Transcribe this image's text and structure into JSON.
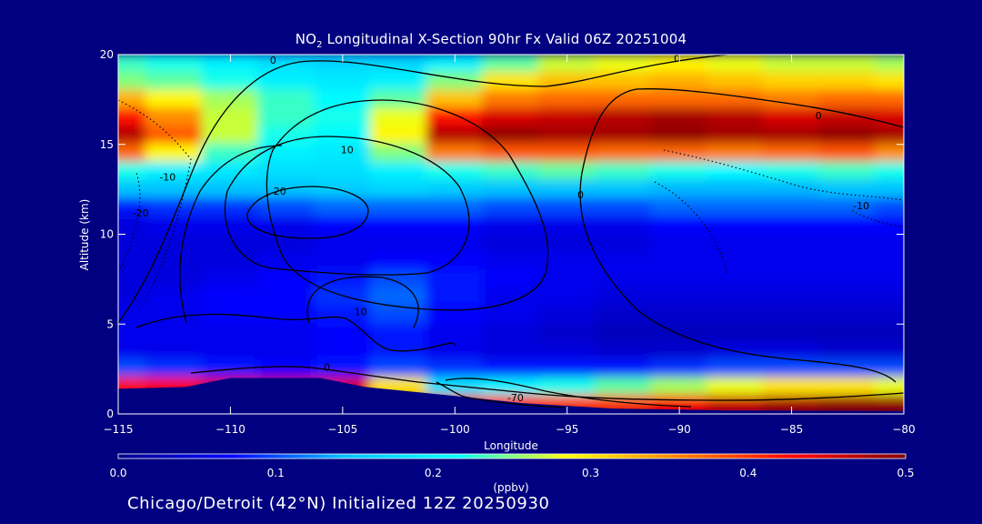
{
  "title": {
    "prefix": "NO",
    "subscript": "2",
    "rest": " Longitudinal X-Section 90hr  Fx Valid 06Z 20251004"
  },
  "footer_text": "Chicago/Detroit (42°N) Initialized 12Z 20250930",
  "chart_data": {
    "type": "heatmap",
    "xlabel": "Longitude",
    "ylabel": "Altitude (km)",
    "xlim": [
      -115,
      -80
    ],
    "ylim": [
      0,
      20
    ],
    "xticks": [
      -115,
      -110,
      -105,
      -100,
      -95,
      -90,
      -85,
      -80
    ],
    "xtick_labels": [
      "−115",
      "−110",
      "−105",
      "−100",
      "−95",
      "−90",
      "−85",
      "−80"
    ],
    "yticks": [
      0,
      5,
      10,
      15,
      20
    ],
    "ytick_labels": [
      "0",
      "5",
      "10",
      "15",
      "20"
    ],
    "colorbar": {
      "label": "(ppbv)",
      "range": [
        0.0,
        0.5
      ],
      "ticks": [
        0.0,
        0.1,
        0.2,
        0.3,
        0.4,
        0.5
      ],
      "tick_labels": [
        "0.0",
        "0.1",
        "0.2",
        "0.3",
        "0.4",
        "0.5"
      ],
      "colormap": [
        "#00008b",
        "#0000ff",
        "#00bfff",
        "#00ffff",
        "#ffff00",
        "#ff8000",
        "#ff0000",
        "#800000"
      ]
    },
    "columns_lon": [
      -115,
      -112.5,
      -110,
      -107.5,
      -105,
      -102.5,
      -100,
      -97.5,
      -95,
      -92.5,
      -90,
      -87.5,
      -85,
      -82.5,
      -80
    ],
    "rows_alt": [
      19.5,
      18.5,
      17.5,
      16.5,
      15.5,
      14.5,
      13.5,
      12.5,
      11.5,
      10.5,
      9.5,
      8.5,
      7.5,
      6.5,
      5.5,
      4.5,
      3.5,
      2.5,
      1.5,
      0.5
    ],
    "values": [
      [
        0.23,
        0.22,
        0.2,
        0.18,
        0.17,
        0.17,
        0.2,
        0.24,
        0.27,
        0.28,
        0.29,
        0.28,
        0.27,
        0.27,
        0.26
      ],
      [
        0.25,
        0.24,
        0.22,
        0.2,
        0.19,
        0.2,
        0.25,
        0.3,
        0.32,
        0.32,
        0.33,
        0.32,
        0.31,
        0.31,
        0.3
      ],
      [
        0.33,
        0.29,
        0.26,
        0.23,
        0.21,
        0.24,
        0.32,
        0.36,
        0.37,
        0.37,
        0.37,
        0.37,
        0.36,
        0.37,
        0.37
      ],
      [
        0.42,
        0.35,
        0.27,
        0.23,
        0.22,
        0.28,
        0.42,
        0.45,
        0.46,
        0.47,
        0.48,
        0.47,
        0.45,
        0.46,
        0.45
      ],
      [
        0.47,
        0.38,
        0.27,
        0.22,
        0.21,
        0.29,
        0.47,
        0.49,
        0.48,
        0.48,
        0.49,
        0.48,
        0.48,
        0.49,
        0.48
      ],
      [
        0.37,
        0.29,
        0.23,
        0.2,
        0.19,
        0.25,
        0.36,
        0.38,
        0.38,
        0.37,
        0.37,
        0.36,
        0.37,
        0.38,
        0.35
      ],
      [
        0.22,
        0.2,
        0.19,
        0.18,
        0.18,
        0.2,
        0.22,
        0.23,
        0.24,
        0.23,
        0.22,
        0.21,
        0.22,
        0.23,
        0.22
      ],
      [
        0.15,
        0.15,
        0.15,
        0.15,
        0.16,
        0.17,
        0.16,
        0.15,
        0.15,
        0.15,
        0.14,
        0.14,
        0.14,
        0.15,
        0.15
      ],
      [
        0.08,
        0.09,
        0.09,
        0.1,
        0.11,
        0.11,
        0.11,
        0.1,
        0.1,
        0.1,
        0.11,
        0.11,
        0.11,
        0.11,
        0.1
      ],
      [
        0.05,
        0.06,
        0.06,
        0.06,
        0.07,
        0.07,
        0.07,
        0.06,
        0.06,
        0.06,
        0.07,
        0.07,
        0.07,
        0.07,
        0.07
      ],
      [
        0.05,
        0.05,
        0.05,
        0.05,
        0.06,
        0.06,
        0.06,
        0.05,
        0.05,
        0.05,
        0.06,
        0.06,
        0.06,
        0.06,
        0.06
      ],
      [
        0.05,
        0.05,
        0.05,
        0.06,
        0.06,
        0.07,
        0.07,
        0.06,
        0.06,
        0.06,
        0.06,
        0.06,
        0.06,
        0.06,
        0.06
      ],
      [
        0.05,
        0.05,
        0.06,
        0.07,
        0.08,
        0.1,
        0.08,
        0.07,
        0.06,
        0.06,
        0.06,
        0.06,
        0.06,
        0.06,
        0.06
      ],
      [
        0.05,
        0.06,
        0.07,
        0.07,
        0.09,
        0.11,
        0.08,
        0.06,
        0.06,
        0.05,
        0.05,
        0.05,
        0.05,
        0.05,
        0.05
      ],
      [
        0.06,
        0.06,
        0.07,
        0.07,
        0.08,
        0.1,
        0.07,
        0.06,
        0.05,
        0.04,
        0.04,
        0.04,
        0.04,
        0.04,
        0.04
      ],
      [
        0.06,
        0.06,
        0.06,
        0.06,
        0.07,
        0.08,
        0.06,
        0.05,
        0.04,
        0.03,
        0.03,
        0.03,
        0.03,
        0.03,
        0.03
      ],
      [
        0.06,
        0.06,
        0.06,
        0.06,
        0.07,
        0.08,
        0.06,
        0.05,
        0.05,
        0.04,
        0.04,
        0.05,
        0.05,
        0.04,
        0.04
      ],
      [
        0.1,
        0.09,
        0.08,
        0.07,
        0.08,
        0.1,
        0.09,
        0.08,
        0.08,
        0.08,
        0.09,
        0.1,
        0.1,
        0.1,
        0.1
      ],
      [
        0.42,
        0.43,
        0.45,
        0.46,
        0.45,
        0.3,
        0.18,
        0.2,
        0.22,
        0.24,
        0.26,
        0.28,
        0.3,
        0.3,
        0.28
      ],
      [
        0.45,
        0.47,
        0.48,
        0.48,
        0.49,
        0.47,
        0.44,
        0.41,
        0.4,
        0.4,
        0.43,
        0.46,
        0.48,
        0.49,
        0.49
      ]
    ],
    "terrain_alt_km": [
      [
        -115,
        1.4
      ],
      [
        -112,
        1.5
      ],
      [
        -110,
        2.0
      ],
      [
        -106,
        2.0
      ],
      [
        -104,
        1.5
      ],
      [
        -100,
        1.0
      ],
      [
        -97,
        0.6
      ],
      [
        -93,
        0.3
      ],
      [
        -88,
        0.2
      ],
      [
        -80,
        0.15
      ]
    ],
    "contour_labels": [
      {
        "text": "0",
        "lon": -108.1,
        "alt": 19.5
      },
      {
        "text": "0",
        "lon": -90.1,
        "alt": 19.6
      },
      {
        "text": "0",
        "lon": -83.8,
        "alt": 16.4
      },
      {
        "text": "0",
        "lon": -94.4,
        "alt": 12.0
      },
      {
        "text": "-10",
        "lon": -112.8,
        "alt": 13.0
      },
      {
        "text": "-20",
        "lon": -114.0,
        "alt": 11.0
      },
      {
        "text": "10",
        "lon": -104.8,
        "alt": 14.5
      },
      {
        "text": "20",
        "lon": -107.8,
        "alt": 12.2
      },
      {
        "text": "-10",
        "lon": -81.9,
        "alt": 11.4
      },
      {
        "text": "10",
        "lon": -104.2,
        "alt": 5.5
      },
      {
        "text": "0",
        "lon": -105.7,
        "alt": 2.4
      },
      {
        "text": "-70",
        "lon": -97.3,
        "alt": 0.7
      }
    ]
  }
}
